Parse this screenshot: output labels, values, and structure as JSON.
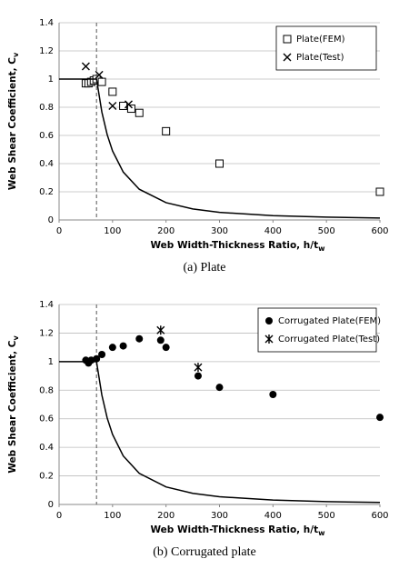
{
  "chart_data": [
    {
      "type": "scatter",
      "caption": "(a) Plate",
      "x_label": "Web Width-Thickness Ratio, h/t",
      "x_label_sub": "w",
      "y_label": "Web Shear Coefficient, C",
      "y_label_sub": "v",
      "xlim": [
        0,
        600
      ],
      "xticks": [
        0,
        100,
        200,
        300,
        400,
        500,
        600
      ],
      "ylim": [
        0,
        1.4
      ],
      "yticks": [
        0,
        0.2,
        0.4,
        0.6,
        0.8,
        1,
        1.2,
        1.4
      ],
      "grid": true,
      "legend": "upper right",
      "vline": 70,
      "series": [
        {
          "name": "Plate(FEM)",
          "marker": "square",
          "color": "#000000",
          "x": [
            50,
            55,
            60,
            65,
            70,
            80,
            100,
            120,
            135,
            150,
            200,
            300,
            600
          ],
          "values": [
            0.97,
            0.97,
            0.98,
            0.99,
            1.0,
            0.98,
            0.91,
            0.81,
            0.79,
            0.76,
            0.63,
            0.4,
            0.2
          ]
        },
        {
          "name": "Plate(Test)",
          "marker": "x",
          "color": "#000000",
          "x": [
            50,
            75,
            100,
            130
          ],
          "values": [
            1.09,
            1.03,
            0.81,
            0.82
          ]
        },
        {
          "marker": "line",
          "color": "#000000",
          "x": [
            0,
            70,
            80,
            90,
            100,
            120,
            150,
            200,
            250,
            300,
            400,
            500,
            600
          ],
          "values": [
            1,
            1,
            0.766,
            0.605,
            0.49,
            0.34,
            0.218,
            0.123,
            0.078,
            0.054,
            0.031,
            0.02,
            0.014
          ]
        }
      ]
    },
    {
      "type": "scatter",
      "caption": "(b) Corrugated plate",
      "x_label": "Web Width-Thickness Ratio, h/t",
      "x_label_sub": "w",
      "y_label": "Web Shear Coefficient, C",
      "y_label_sub": "v",
      "xlim": [
        0,
        600
      ],
      "xticks": [
        0,
        100,
        200,
        300,
        400,
        500,
        600
      ],
      "ylim": [
        0,
        1.4
      ],
      "yticks": [
        0,
        0.2,
        0.4,
        0.6,
        0.8,
        1,
        1.2,
        1.4
      ],
      "grid": true,
      "legend": "upper right",
      "vline": 70,
      "series": [
        {
          "name": "Corrugated Plate(FEM)",
          "marker": "circle",
          "color": "#000000",
          "x": [
            50,
            55,
            60,
            70,
            80,
            100,
            120,
            150,
            190,
            200,
            260,
            300,
            400,
            600
          ],
          "values": [
            1.01,
            0.99,
            1.01,
            1.02,
            1.05,
            1.1,
            1.11,
            1.16,
            1.15,
            1.1,
            0.9,
            0.82,
            0.77,
            0.61
          ]
        },
        {
          "name": "Corrugated Plate(Test)",
          "marker": "asterisk",
          "color": "#000000",
          "x": [
            190,
            260
          ],
          "values": [
            1.22,
            0.96
          ]
        },
        {
          "marker": "line",
          "color": "#000000",
          "x": [
            0,
            70,
            80,
            90,
            100,
            120,
            150,
            200,
            250,
            300,
            400,
            500,
            600
          ],
          "values": [
            1,
            1,
            0.766,
            0.605,
            0.49,
            0.34,
            0.218,
            0.123,
            0.078,
            0.054,
            0.031,
            0.02,
            0.014
          ]
        }
      ]
    }
  ]
}
